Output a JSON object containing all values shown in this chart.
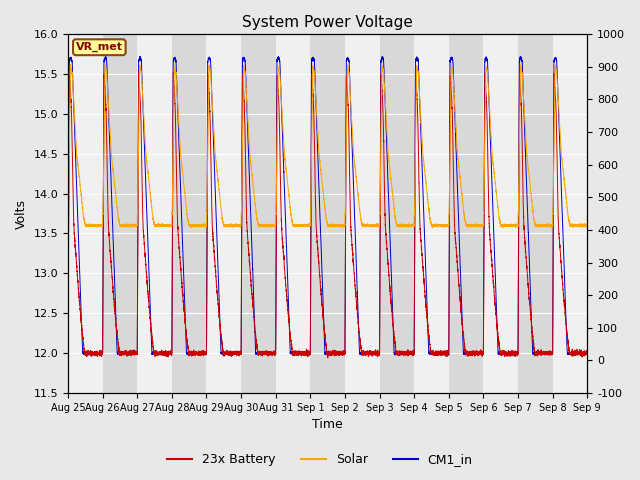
{
  "title": "System Power Voltage",
  "xlabel": "Time",
  "ylabel_left": "Volts",
  "ylim_left": [
    11.5,
    16.0
  ],
  "ylim_right": [
    -100,
    1000
  ],
  "yticks_left": [
    11.5,
    12.0,
    12.5,
    13.0,
    13.5,
    14.0,
    14.5,
    15.0,
    15.5,
    16.0
  ],
  "yticks_right": [
    -100,
    0,
    100,
    200,
    300,
    400,
    500,
    600,
    700,
    800,
    900,
    1000
  ],
  "x_labels": [
    "Aug 25",
    "Aug 26",
    "Aug 27",
    "Aug 28",
    "Aug 29",
    "Aug 30",
    "Aug 31",
    "Sep 1",
    "Sep 2",
    "Sep 3",
    "Sep 4",
    "Sep 5",
    "Sep 6",
    "Sep 7",
    "Sep 8",
    "Sep 9"
  ],
  "annotation_text": "VR_met",
  "annotation_color": "#8B0000",
  "annotation_bg": "#FFFF99",
  "annotation_border": "#8B4513",
  "battery_color": "#CC0000",
  "solar_color": "#FFA500",
  "cm1_color": "#0000CC",
  "legend_labels": [
    "23x Battery",
    "Solar",
    "CM1_in"
  ],
  "bg_color": "#E8E8E8",
  "band_light": "#F0F0F0",
  "band_dark": "#D8D8D8",
  "grid_color": "#C8C8C8",
  "n_days": 15
}
